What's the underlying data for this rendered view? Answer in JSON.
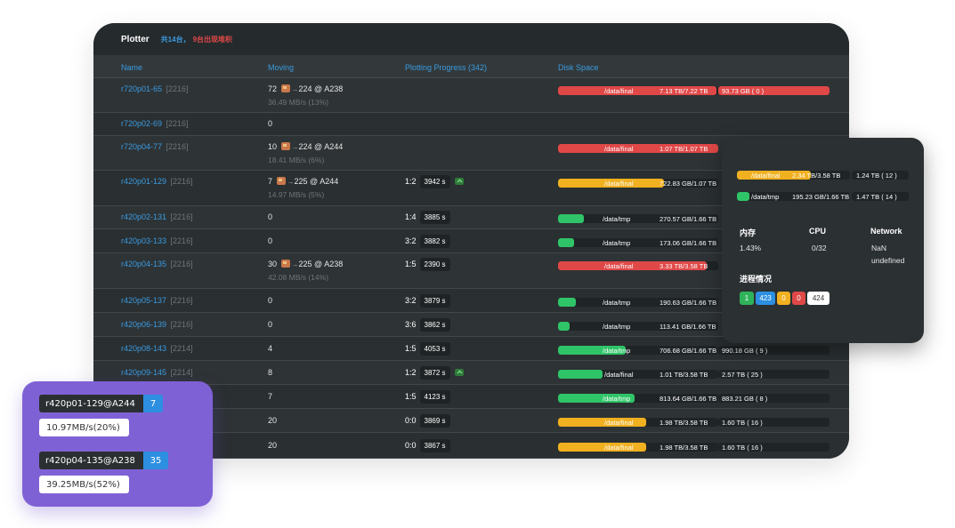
{
  "header": {
    "title": "Plotter",
    "summary_total": "共14台，",
    "summary_warn": "9台出现堆积"
  },
  "columns": {
    "name": "Name",
    "moving": "Moving",
    "progress": "Plotting Progress (342)",
    "disk": "Disk Space"
  },
  "rows": [
    {
      "name": "r720p01-65",
      "suffix": "[2216]",
      "moving": "72",
      "target": "224 @ A238",
      "speed": "36.49 MB/s (13%)",
      "ratio": "",
      "time": "",
      "disk": [
        {
          "path": "/data/final",
          "used": "7.13 TB/7.22 TB",
          "free": "93.73 GB ( 0 )",
          "pct": 99,
          "color": "red"
        }
      ]
    },
    {
      "name": "r720p02-69",
      "suffix": "[2216]",
      "moving": "0",
      "target": "",
      "speed": "",
      "ratio": "",
      "time": "",
      "disk": []
    },
    {
      "name": "r720p04-77",
      "suffix": "[2216]",
      "moving": "10",
      "target": "224 @ A244",
      "speed": "18.41 MB/s (6%)",
      "ratio": "",
      "time": "",
      "disk": [
        {
          "path": "/data/final",
          "used": "1.07 TB/1.07 TB",
          "free": "",
          "pct": 100,
          "color": "red"
        }
      ]
    },
    {
      "name": "r420p01-129",
      "suffix": "[2216]",
      "moving": "7",
      "target": "225 @ A244",
      "speed": "14.97 MB/s (5%)",
      "ratio": "1:2",
      "time": "3942 s",
      "icon": true,
      "disk": [
        {
          "path": "/data/final",
          "used": "722.83 GB/1.07 TB",
          "free": "",
          "pct": 66,
          "color": "yellow"
        }
      ]
    },
    {
      "name": "r420p02-131",
      "suffix": "[2216]",
      "moving": "0",
      "target": "",
      "speed": "",
      "ratio": "1:4",
      "time": "3885 s",
      "disk": [
        {
          "path": "/data/tmp",
          "used": "270.57 GB/1.66 TB",
          "free": "",
          "pct": 16,
          "color": "green"
        }
      ]
    },
    {
      "name": "r420p03-133",
      "suffix": "[2216]",
      "moving": "0",
      "target": "",
      "speed": "",
      "ratio": "3:2",
      "time": "3882 s",
      "disk": [
        {
          "path": "/data/tmp",
          "used": "173.06 GB/1.66 TB",
          "free": "",
          "pct": 10,
          "color": "green"
        }
      ]
    },
    {
      "name": "r420p04-135",
      "suffix": "[2216]",
      "moving": "30",
      "target": "225 @ A238",
      "speed": "42.08 MB/s (14%)",
      "ratio": "1:5",
      "time": "2390 s",
      "disk": [
        {
          "path": "/data/final",
          "used": "3.33 TB/3.58 TB",
          "free": "",
          "pct": 93,
          "color": "red"
        }
      ]
    },
    {
      "name": "r420p05-137",
      "suffix": "[2216]",
      "moving": "0",
      "target": "",
      "speed": "",
      "ratio": "3:2",
      "time": "3879 s",
      "disk": [
        {
          "path": "/data/tmp",
          "used": "190.63 GB/1.66 TB",
          "free": "",
          "pct": 11,
          "color": "green"
        }
      ]
    },
    {
      "name": "r420p06-139",
      "suffix": "[2216]",
      "moving": "0",
      "target": "",
      "speed": "",
      "ratio": "3:6",
      "time": "3862 s",
      "disk": [
        {
          "path": "/data/tmp",
          "used": "113.41 GB/1.66 TB",
          "free": "",
          "pct": 7,
          "color": "green"
        }
      ]
    },
    {
      "name": "r420p08-143",
      "suffix": "[2214]",
      "moving": "4",
      "target": "",
      "speed": "",
      "ratio": "1:5",
      "time": "4053 s",
      "disk": [
        {
          "path": "/data/tmp",
          "used": "706.68 GB/1.66 TB",
          "free": "990.18 GB ( 9 )",
          "pct": 42,
          "color": "green"
        }
      ]
    },
    {
      "name": "r420p09-145",
      "suffix": "[2214]",
      "moving": "8",
      "target": "",
      "speed": "",
      "ratio": "1:2",
      "time": "3872 s",
      "icon": true,
      "disk": [
        {
          "path": "/data/final",
          "used": "1.01 TB/3.58 TB",
          "free": "2.57 TB ( 25 )",
          "pct": 28,
          "color": "green"
        }
      ]
    },
    {
      "name": "",
      "suffix": "",
      "moving": "7",
      "target": "",
      "speed": "",
      "ratio": "1:5",
      "time": "4123 s",
      "disk": [
        {
          "path": "/data/tmp",
          "used": "813.64 GB/1.66 TB",
          "free": "883.21 GB ( 8 )",
          "pct": 48,
          "color": "green"
        }
      ]
    },
    {
      "name": "",
      "suffix": "",
      "moving": "20",
      "target": "",
      "speed": "",
      "ratio": "0:0",
      "time": "3869 s",
      "disk": [
        {
          "path": "/data/final",
          "used": "1.98 TB/3.58 TB",
          "free": "1.60 TB ( 16 )",
          "pct": 55,
          "color": "yellow"
        }
      ]
    },
    {
      "name": "",
      "suffix": "",
      "moving": "20",
      "target": "",
      "speed": "",
      "ratio": "0:0",
      "time": "3867 s",
      "disk": [
        {
          "path": "/data/final",
          "used": "1.98 TB/3.58 TB",
          "free": "1.60 TB ( 16 )",
          "pct": 55,
          "color": "yellow"
        }
      ]
    }
  ],
  "popup": {
    "disks": [
      {
        "path": "/data/final",
        "used": "2.34 TB/3.58 TB",
        "free": "1.24 TB ( 12 )",
        "pct": 65,
        "color": "yellow"
      },
      {
        "path": "/data/tmp",
        "used": "195.23 GB/1.66 TB",
        "free": "1.47 TB ( 14 )",
        "pct": 11,
        "color": "green"
      }
    ],
    "memory_label": "内存",
    "memory_value": "1.43%",
    "cpu_label": "CPU",
    "cpu_value": "0/32",
    "network_label": "Network",
    "network_value_1": "NaN",
    "network_value_2": "undefined",
    "process_label": "进程情况",
    "process_counts": [
      {
        "value": "1",
        "color": "#2fb35a"
      },
      {
        "value": "423",
        "color": "#2d8fe0"
      },
      {
        "value": "0",
        "color": "#f0b020"
      },
      {
        "value": "0",
        "color": "#e04848"
      },
      {
        "value": "424",
        "color": "#ffffff"
      }
    ]
  },
  "transfers": [
    {
      "job": "r420p01-129@A244",
      "count": "7",
      "speed": "10.97MB/s(20%)"
    },
    {
      "job": "r420p04-135@A238",
      "count": "35",
      "speed": "39.25MB/s(52%)"
    }
  ],
  "colors": {
    "red": "#e04848",
    "yellow": "#f0b020",
    "green": "#2fc468",
    "accent": "#3a9ae0",
    "card": "#7f61d6"
  }
}
